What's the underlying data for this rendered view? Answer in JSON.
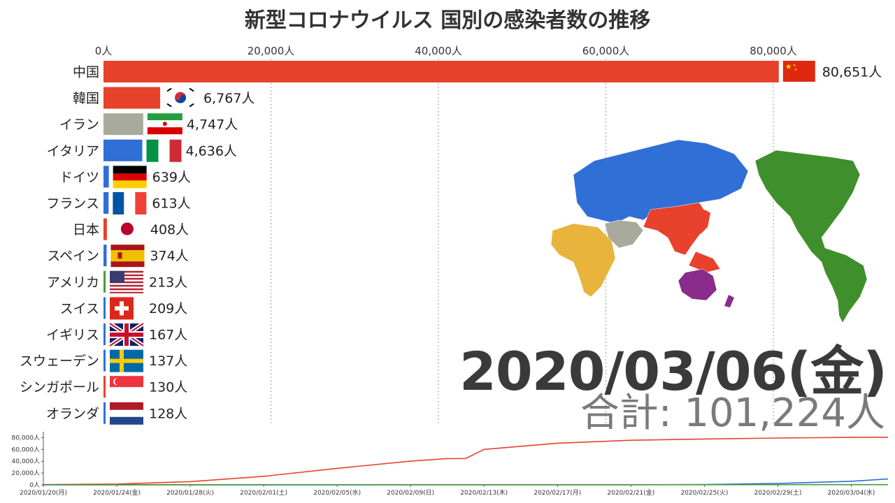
{
  "title": "新型コロナウイルス 国別の感染者数の推移",
  "date": "2020/03/06(金)",
  "total_label": "合計: 101,224人",
  "chart_data": [
    {
      "type": "bar",
      "orientation": "horizontal",
      "title": "新型コロナウイルス 国別の感染者数の推移",
      "xlim": [
        0,
        85000
      ],
      "x_ticks": [
        0,
        20000,
        40000,
        60000,
        80000
      ],
      "x_tick_labels": [
        "0人",
        "20,000人",
        "40,000人",
        "60,000人",
        "80,000人"
      ],
      "grid": "vertical dotted",
      "categories": [
        "中国",
        "韓国",
        "イラン",
        "イタリア",
        "ドイツ",
        "フランス",
        "日本",
        "スペイン",
        "アメリカ",
        "スイス",
        "イギリス",
        "スウェーデン",
        "シンガポール",
        "オランダ"
      ],
      "values": [
        80651,
        6767,
        4747,
        4636,
        639,
        613,
        408,
        374,
        213,
        209,
        167,
        137,
        130,
        128
      ],
      "value_labels": [
        "80,651人",
        "6,767人",
        "4,747人",
        "4,636人",
        "639人",
        "613人",
        "408人",
        "374人",
        "213人",
        "209人",
        "167人",
        "137人",
        "130人",
        "128人"
      ],
      "colors": [
        "#e8412c",
        "#e8412c",
        "#a8aa9b",
        "#2f6fd6",
        "#2f6fd6",
        "#2f6fd6",
        "#e8412c",
        "#2f6fd6",
        "#4a9a3a",
        "#2f6fd6",
        "#2f6fd6",
        "#2f6fd6",
        "#e8412c",
        "#2f6fd6"
      ],
      "flags": [
        "china-flag-icon",
        "korea-flag-icon",
        "iran-flag-icon",
        "italy-flag-icon",
        "germany-flag-icon",
        "france-flag-icon",
        "japan-flag-icon",
        "spain-flag-icon",
        "usa-flag-icon",
        "switzerland-flag-icon",
        "uk-flag-icon",
        "sweden-flag-icon",
        "singapore-flag-icon",
        "netherlands-flag-icon"
      ]
    },
    {
      "type": "line",
      "ylim": [
        0,
        90000
      ],
      "y_ticks": [
        0,
        20000,
        40000,
        60000,
        80000
      ],
      "y_tick_labels": [
        "0人",
        "20,000人",
        "40,000人",
        "60,000人",
        "80,000人"
      ],
      "x_tick_labels": [
        "2020/01/20(月)",
        "2020/01/24(金)",
        "2020/01/28(火)",
        "2020/02/01(土)",
        "2020/02/05(水)",
        "2020/02/09(日)",
        "2020/02/13(木)",
        "2020/02/17(月)",
        "2020/02/21(金)",
        "2020/02/25(火)",
        "2020/02/29(土)",
        "2020/03/04(水)"
      ],
      "series": [
        {
          "color": "#e8412c",
          "x": [
            "2020-01-20",
            "2020-01-24",
            "2020-01-28",
            "2020-02-01",
            "2020-02-05",
            "2020-02-09",
            "2020-02-11",
            "2020-02-12",
            "2020-02-13",
            "2020-02-17",
            "2020-02-21",
            "2020-02-25",
            "2020-02-29",
            "2020-03-04",
            "2020-03-06"
          ],
          "values": [
            300,
            1300,
            5500,
            14400,
            28000,
            40200,
            44500,
            44700,
            60000,
            70600,
            75600,
            77700,
            79400,
            80400,
            80651
          ]
        },
        {
          "color": "#2f6fd6",
          "x": [
            "2020-01-20",
            "2020-02-21",
            "2020-02-25",
            "2020-02-29",
            "2020-03-04",
            "2020-03-06"
          ],
          "values": [
            0,
            100,
            600,
            2400,
            6000,
            10000
          ]
        },
        {
          "color": "#4a9a3a",
          "x": [
            "2020-01-20",
            "2020-03-06"
          ],
          "values": [
            0,
            300
          ]
        }
      ]
    }
  ],
  "map": {
    "regions": [
      {
        "name": "europe-asia-north",
        "color": "#2f6fd6"
      },
      {
        "name": "east-asia",
        "color": "#e8412c"
      },
      {
        "name": "africa",
        "color": "#e8b43c"
      },
      {
        "name": "middle-east",
        "color": "#a8aa9b"
      },
      {
        "name": "americas",
        "color": "#3f8f2c"
      },
      {
        "name": "oceania",
        "color": "#8a2c8c"
      }
    ]
  }
}
